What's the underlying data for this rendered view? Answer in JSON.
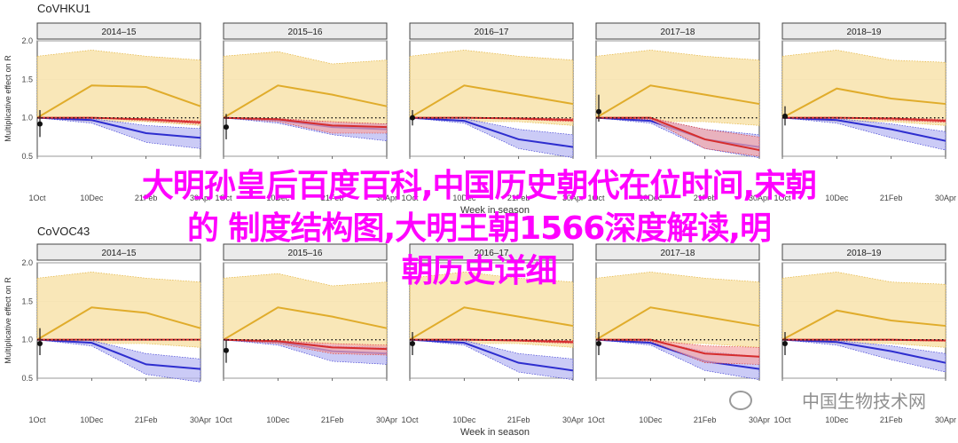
{
  "chart_data": [
    {
      "type": "line",
      "title": "CoVHKU1",
      "ylabel": "Multiplicative effect on R",
      "xlabel": "Week in season",
      "ylim": [
        0.5,
        2.0
      ],
      "yticks": [
        "0.5",
        "1.0",
        "1.5",
        "2.0"
      ],
      "xticks": [
        "1Oct",
        "10Dec",
        "21Feb",
        "30Apr"
      ],
      "x": [
        0,
        10,
        20,
        30
      ],
      "panels": [
        {
          "season": "2014–15",
          "series": [
            {
              "color": "#e0ac2b",
              "values": [
                1.0,
                1.42,
                1.4,
                1.15
              ],
              "upper": [
                1.8,
                1.88,
                1.8,
                1.75
              ],
              "lower": [
                1.0,
                0.95,
                0.95,
                0.9
              ]
            },
            {
              "color": "#2e2ecf",
              "values": [
                1.0,
                0.97,
                0.8,
                0.74
              ],
              "upper": [
                1.0,
                0.99,
                0.9,
                0.86
              ],
              "lower": [
                1.0,
                0.93,
                0.68,
                0.6
              ]
            },
            {
              "color": "#d62d2d",
              "values": [
                1.0,
                1.0,
                0.98,
                0.94
              ],
              "upper": [
                1.0,
                1.0,
                0.99,
                0.96
              ],
              "lower": [
                1.0,
                1.0,
                0.96,
                0.92
              ]
            }
          ],
          "point": {
            "x": 0,
            "y": 0.92,
            "lo": 0.75,
            "hi": 1.1
          }
        },
        {
          "season": "2015–16",
          "series": [
            {
              "color": "#e0ac2b",
              "values": [
                1.0,
                1.42,
                1.3,
                1.15
              ],
              "upper": [
                1.8,
                1.86,
                1.7,
                1.75
              ],
              "lower": [
                1.0,
                0.95,
                0.95,
                0.9
              ]
            },
            {
              "color": "#2e2ecf",
              "values": [
                1.0,
                0.97,
                0.88,
                0.85
              ],
              "upper": [
                1.0,
                0.99,
                0.93,
                0.92
              ],
              "lower": [
                1.0,
                0.93,
                0.78,
                0.7
              ]
            },
            {
              "color": "#d62d2d",
              "values": [
                1.0,
                0.98,
                0.9,
                0.88
              ],
              "upper": [
                1.0,
                0.99,
                0.95,
                0.92
              ],
              "lower": [
                1.0,
                0.95,
                0.8,
                0.8
              ]
            }
          ],
          "point": {
            "x": 0,
            "y": 0.88,
            "lo": 0.72,
            "hi": 1.05
          }
        },
        {
          "season": "2016–17",
          "series": [
            {
              "color": "#e0ac2b",
              "values": [
                1.0,
                1.42,
                1.3,
                1.18
              ],
              "upper": [
                1.8,
                1.88,
                1.8,
                1.75
              ],
              "lower": [
                1.0,
                0.95,
                0.95,
                0.9
              ]
            },
            {
              "color": "#2e2ecf",
              "values": [
                1.0,
                0.96,
                0.72,
                0.62
              ],
              "upper": [
                1.0,
                0.99,
                0.85,
                0.78
              ],
              "lower": [
                1.0,
                0.93,
                0.6,
                0.48
              ]
            },
            {
              "color": "#d62d2d",
              "values": [
                1.0,
                1.0,
                0.99,
                0.97
              ],
              "upper": [
                1.0,
                1.0,
                1.0,
                0.99
              ],
              "lower": [
                1.0,
                1.0,
                0.98,
                0.95
              ]
            }
          ],
          "point": {
            "x": 0,
            "y": 1.0,
            "lo": 0.9,
            "hi": 1.1
          }
        },
        {
          "season": "2017–18",
          "series": [
            {
              "color": "#e0ac2b",
              "values": [
                1.0,
                1.42,
                1.3,
                1.18
              ],
              "upper": [
                1.8,
                1.88,
                1.8,
                1.75
              ],
              "lower": [
                1.0,
                0.95,
                0.95,
                0.9
              ]
            },
            {
              "color": "#2e2ecf",
              "values": [
                1.0,
                0.96,
                0.72,
                0.62
              ],
              "upper": [
                1.0,
                0.99,
                0.85,
                0.78
              ],
              "lower": [
                1.0,
                0.93,
                0.6,
                0.48
              ]
            },
            {
              "color": "#d62d2d",
              "values": [
                1.0,
                1.0,
                0.72,
                0.58
              ],
              "upper": [
                1.0,
                1.0,
                0.85,
                0.75
              ],
              "lower": [
                1.0,
                0.98,
                0.6,
                0.5
              ]
            }
          ],
          "point": {
            "x": 0,
            "y": 1.08,
            "lo": 0.95,
            "hi": 1.3
          }
        },
        {
          "season": "2018–19",
          "series": [
            {
              "color": "#e0ac2b",
              "values": [
                1.0,
                1.38,
                1.25,
                1.18
              ],
              "upper": [
                1.8,
                1.88,
                1.75,
                1.72
              ],
              "lower": [
                1.0,
                0.95,
                0.95,
                0.9
              ]
            },
            {
              "color": "#2e2ecf",
              "values": [
                1.0,
                0.97,
                0.85,
                0.7
              ],
              "upper": [
                1.0,
                0.99,
                0.92,
                0.82
              ],
              "lower": [
                1.0,
                0.93,
                0.74,
                0.58
              ]
            },
            {
              "color": "#d62d2d",
              "values": [
                1.0,
                1.0,
                0.99,
                0.96
              ],
              "upper": [
                1.0,
                1.0,
                1.0,
                0.98
              ],
              "lower": [
                1.0,
                1.0,
                0.97,
                0.94
              ]
            }
          ],
          "point": {
            "x": 0,
            "y": 1.02,
            "lo": 0.9,
            "hi": 1.15
          }
        }
      ]
    },
    {
      "type": "line",
      "title": "CoVOC43",
      "ylabel": "Multiplicative effect on R",
      "xlabel": "Week in season",
      "ylim": [
        0.5,
        2.0
      ],
      "yticks": [
        "0.5",
        "1.0",
        "1.5",
        "2.0"
      ],
      "xticks": [
        "1Oct",
        "10Dec",
        "21Feb",
        "30Apr"
      ],
      "x": [
        0,
        10,
        20,
        30
      ],
      "panels": [
        {
          "season": "2014–15",
          "series": [
            {
              "color": "#e0ac2b",
              "values": [
                1.0,
                1.42,
                1.35,
                1.15
              ],
              "upper": [
                1.8,
                1.88,
                1.8,
                1.75
              ],
              "lower": [
                1.0,
                0.95,
                0.95,
                0.9
              ]
            },
            {
              "color": "#2e2ecf",
              "values": [
                1.0,
                0.96,
                0.68,
                0.62
              ],
              "upper": [
                1.0,
                0.99,
                0.82,
                0.75
              ],
              "lower": [
                1.0,
                0.92,
                0.55,
                0.45
              ]
            },
            {
              "color": "#d62d2d",
              "values": [
                1.0,
                1.0,
                1.0,
                1.0
              ],
              "upper": [
                1.0,
                1.0,
                1.0,
                1.0
              ],
              "lower": [
                1.0,
                1.0,
                1.0,
                1.0
              ]
            }
          ],
          "point": {
            "x": 0,
            "y": 0.95,
            "lo": 0.8,
            "hi": 1.15
          }
        },
        {
          "season": "2015–16",
          "series": [
            {
              "color": "#e0ac2b",
              "values": [
                1.0,
                1.42,
                1.3,
                1.15
              ],
              "upper": [
                1.8,
                1.86,
                1.7,
                1.75
              ],
              "lower": [
                1.0,
                0.95,
                0.95,
                0.9
              ]
            },
            {
              "color": "#2e2ecf",
              "values": [
                1.0,
                0.97,
                0.85,
                0.82
              ],
              "upper": [
                1.0,
                0.99,
                0.92,
                0.9
              ],
              "lower": [
                1.0,
                0.93,
                0.72,
                0.68
              ]
            },
            {
              "color": "#d62d2d",
              "values": [
                1.0,
                0.98,
                0.9,
                0.88
              ],
              "upper": [
                1.0,
                0.99,
                0.95,
                0.93
              ],
              "lower": [
                1.0,
                0.95,
                0.82,
                0.8
              ]
            }
          ],
          "point": {
            "x": 0,
            "y": 0.86,
            "lo": 0.7,
            "hi": 1.0
          }
        },
        {
          "season": "2016–17",
          "series": [
            {
              "color": "#e0ac2b",
              "values": [
                1.0,
                1.42,
                1.3,
                1.18
              ],
              "upper": [
                1.8,
                1.88,
                1.8,
                1.75
              ],
              "lower": [
                1.0,
                0.95,
                0.95,
                0.9
              ]
            },
            {
              "color": "#2e2ecf",
              "values": [
                1.0,
                0.96,
                0.7,
                0.6
              ],
              "upper": [
                1.0,
                0.99,
                0.82,
                0.75
              ],
              "lower": [
                1.0,
                0.93,
                0.58,
                0.48
              ]
            },
            {
              "color": "#d62d2d",
              "values": [
                1.0,
                1.0,
                0.99,
                0.97
              ],
              "upper": [
                1.0,
                1.0,
                1.0,
                0.99
              ],
              "lower": [
                1.0,
                1.0,
                0.98,
                0.95
              ]
            }
          ],
          "point": {
            "x": 0,
            "y": 0.95,
            "lo": 0.8,
            "hi": 1.1
          }
        },
        {
          "season": "2017–18",
          "series": [
            {
              "color": "#e0ac2b",
              "values": [
                1.0,
                1.42,
                1.3,
                1.18
              ],
              "upper": [
                1.8,
                1.88,
                1.8,
                1.75
              ],
              "lower": [
                1.0,
                0.95,
                0.95,
                0.9
              ]
            },
            {
              "color": "#2e2ecf",
              "values": [
                1.0,
                0.96,
                0.72,
                0.62
              ],
              "upper": [
                1.0,
                0.99,
                0.85,
                0.78
              ],
              "lower": [
                1.0,
                0.93,
                0.6,
                0.48
              ]
            },
            {
              "color": "#d62d2d",
              "values": [
                1.0,
                1.0,
                0.82,
                0.78
              ],
              "upper": [
                1.0,
                1.0,
                0.92,
                0.9
              ],
              "lower": [
                1.0,
                0.98,
                0.7,
                0.68
              ]
            }
          ],
          "point": {
            "x": 0,
            "y": 0.95,
            "lo": 0.8,
            "hi": 1.1
          }
        },
        {
          "season": "2018–19",
          "series": [
            {
              "color": "#e0ac2b",
              "values": [
                1.0,
                1.38,
                1.25,
                1.18
              ],
              "upper": [
                1.8,
                1.88,
                1.75,
                1.72
              ],
              "lower": [
                1.0,
                0.95,
                0.95,
                0.9
              ]
            },
            {
              "color": "#2e2ecf",
              "values": [
                1.0,
                0.97,
                0.85,
                0.7
              ],
              "upper": [
                1.0,
                0.99,
                0.92,
                0.82
              ],
              "lower": [
                1.0,
                0.93,
                0.74,
                0.58
              ]
            },
            {
              "color": "#d62d2d",
              "values": [
                1.0,
                1.0,
                1.0,
                0.99
              ],
              "upper": [
                1.0,
                1.0,
                1.0,
                1.0
              ],
              "lower": [
                1.0,
                1.0,
                0.99,
                0.98
              ]
            }
          ],
          "point": {
            "x": 0,
            "y": 0.95,
            "lo": 0.8,
            "hi": 1.1
          }
        }
      ]
    }
  ],
  "overlay": {
    "line1": "大明孙皇后百度百科,中国历史朝代在位时间,宋朝",
    "line2": "的  制度结构图,大明王朝1566深度解读,明",
    "line3": "朝历史详细"
  },
  "watermark": "中国生物技术网"
}
